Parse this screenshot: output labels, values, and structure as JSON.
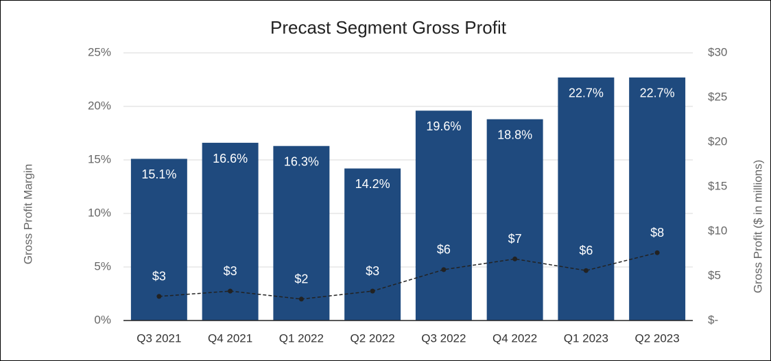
{
  "chart_data": {
    "type": "bar",
    "title": "Precast Segment Gross Profit",
    "ylabel": "Gross Profit Margin",
    "y2label": "Gross Profit ($ in millions)",
    "categories": [
      "Q3 2021",
      "Q4 2021",
      "Q1 2022",
      "Q2 2022",
      "Q3 2022",
      "Q4 2022",
      "Q1 2023",
      "Q2 2023"
    ],
    "series": [
      {
        "name": "Gross Profit Margin",
        "type": "bar",
        "color": "#1f4a7e",
        "values": [
          15.1,
          16.6,
          16.3,
          14.2,
          19.6,
          18.8,
          22.7,
          22.7
        ],
        "value_labels": [
          "15.1%",
          "16.6%",
          "16.3%",
          "14.2%",
          "19.6%",
          "18.8%",
          "22.7%",
          "22.7%"
        ]
      },
      {
        "name": "Gross Profit",
        "type": "line",
        "axis": "y2",
        "color": "#222222",
        "values": [
          2.7,
          3.3,
          2.4,
          3.3,
          5.7,
          6.9,
          5.6,
          7.6
        ],
        "value_labels": [
          "$3",
          "$3",
          "$2",
          "$3",
          "$6",
          "$7",
          "$6",
          "$8"
        ]
      }
    ],
    "ylim": [
      0,
      25
    ],
    "yticks": [
      {
        "value": 0,
        "label": "0%"
      },
      {
        "value": 5,
        "label": "5%"
      },
      {
        "value": 10,
        "label": "10%"
      },
      {
        "value": 15,
        "label": "15%"
      },
      {
        "value": 20,
        "label": "20%"
      },
      {
        "value": 25,
        "label": "25%"
      }
    ],
    "y2lim": [
      0,
      30
    ],
    "y2ticks": [
      {
        "value": 0,
        "label": "$-"
      },
      {
        "value": 5,
        "label": "$5"
      },
      {
        "value": 10,
        "label": "$10"
      },
      {
        "value": 15,
        "label": "$15"
      },
      {
        "value": 20,
        "label": "$20"
      },
      {
        "value": 25,
        "label": "$25"
      },
      {
        "value": 30,
        "label": "$30"
      }
    ],
    "grid": true
  }
}
